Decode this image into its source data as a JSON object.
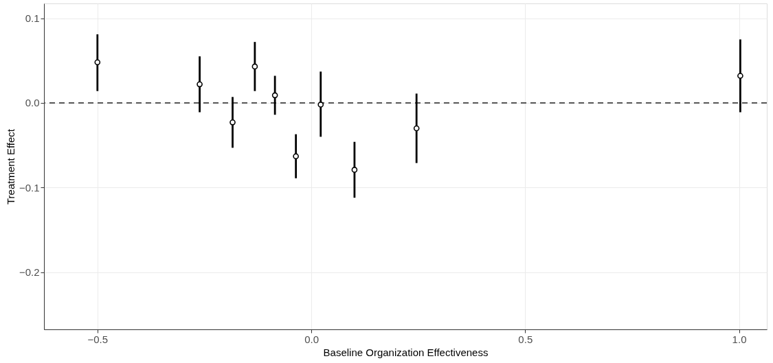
{
  "chart_data": {
    "type": "scatter",
    "xlabel": "Baseline Organization Effectiveness",
    "ylabel": "Treatment Effect",
    "x": [
      -0.5,
      -0.261,
      -0.184,
      -0.132,
      -0.085,
      -0.036,
      0.022,
      0.101,
      0.246,
      1.003
    ],
    "series": [
      {
        "color": "#000000",
        "values": [
          0.048,
          0.022,
          -0.023,
          0.043,
          0.009,
          -0.063,
          -0.002,
          -0.079,
          -0.03,
          0.032
        ],
        "errors": [
          [
            0.014,
            0.081
          ],
          [
            -0.011,
            0.055
          ],
          [
            -0.053,
            0.007
          ],
          [
            0.014,
            0.072
          ],
          [
            -0.014,
            0.032
          ],
          [
            -0.089,
            -0.037
          ],
          [
            -0.04,
            0.037
          ],
          [
            -0.112,
            -0.046
          ],
          [
            -0.071,
            0.011
          ],
          [
            -0.011,
            0.075
          ]
        ]
      }
    ],
    "xlim": [
      -0.625,
      1.065
    ],
    "ylim": [
      -0.2675,
      0.1175
    ],
    "xticks": [
      {
        "value": -0.5,
        "label": "−0.5"
      },
      {
        "value": 0.0,
        "label": "0.0"
      },
      {
        "value": 0.5,
        "label": "0.5"
      },
      {
        "value": 1.0,
        "label": "1.0"
      }
    ],
    "yticks": [
      {
        "value": -0.2,
        "label": "−0.2"
      },
      {
        "value": -0.1,
        "label": "−0.1"
      },
      {
        "value": 0.0,
        "label": "0.0"
      },
      {
        "value": 0.1,
        "label": "0.1"
      }
    ],
    "ref_lines": [
      {
        "axis": "y",
        "value": 0,
        "label": null,
        "color": "#555555",
        "line_style": "dashed"
      }
    ],
    "grid": true,
    "marker": "circle"
  }
}
